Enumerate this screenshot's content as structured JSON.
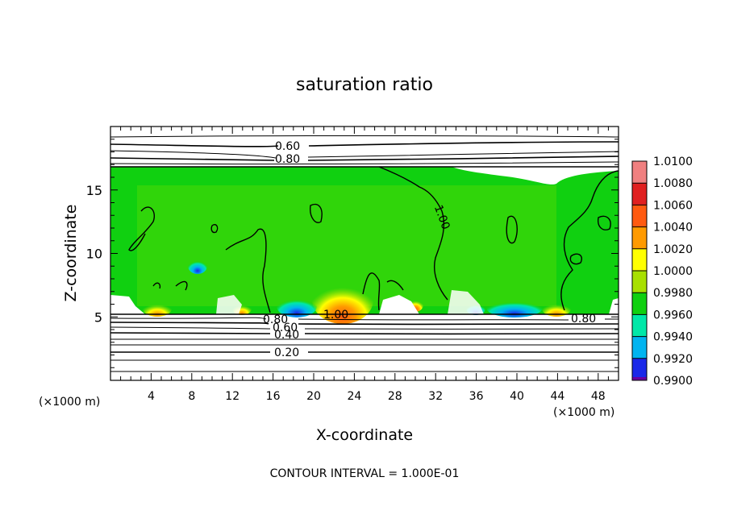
{
  "chart_data": {
    "type": "heatmap",
    "title": "saturation ratio",
    "xlabel": "X-coordinate",
    "ylabel": "Z-coordinate",
    "x_unit": "(×1000 m)",
    "y_unit": "(×1000 m)",
    "xlim": [
      0,
      50
    ],
    "ylim": [
      0,
      20
    ],
    "x_ticks": [
      4,
      8,
      12,
      16,
      20,
      24,
      28,
      32,
      36,
      40,
      44,
      48
    ],
    "y_ticks": [
      5,
      10,
      15
    ],
    "colorbar": {
      "levels": [
        "1.0100",
        "1.0080",
        "1.0060",
        "1.0040",
        "1.0020",
        "1.0000",
        "0.9980",
        "0.9960",
        "0.9940",
        "0.9920",
        "0.9900"
      ],
      "colors": [
        "#f08080",
        "#e02020",
        "#ff5a10",
        "#ff9a00",
        "#ffff00",
        "#a8e000",
        "#10d010",
        "#00e8a8",
        "#00b4f0",
        "#1a28e8",
        "#1800a0",
        "#6a00a0"
      ]
    },
    "contour_labels": [
      "0.60",
      "0.80",
      "1.00",
      "1.00",
      "0.80",
      "0.60",
      "0.40",
      "0.20",
      "0.80"
    ],
    "contour_interval_text": "CONTOUR INTERVAL = 1.000E-01"
  }
}
